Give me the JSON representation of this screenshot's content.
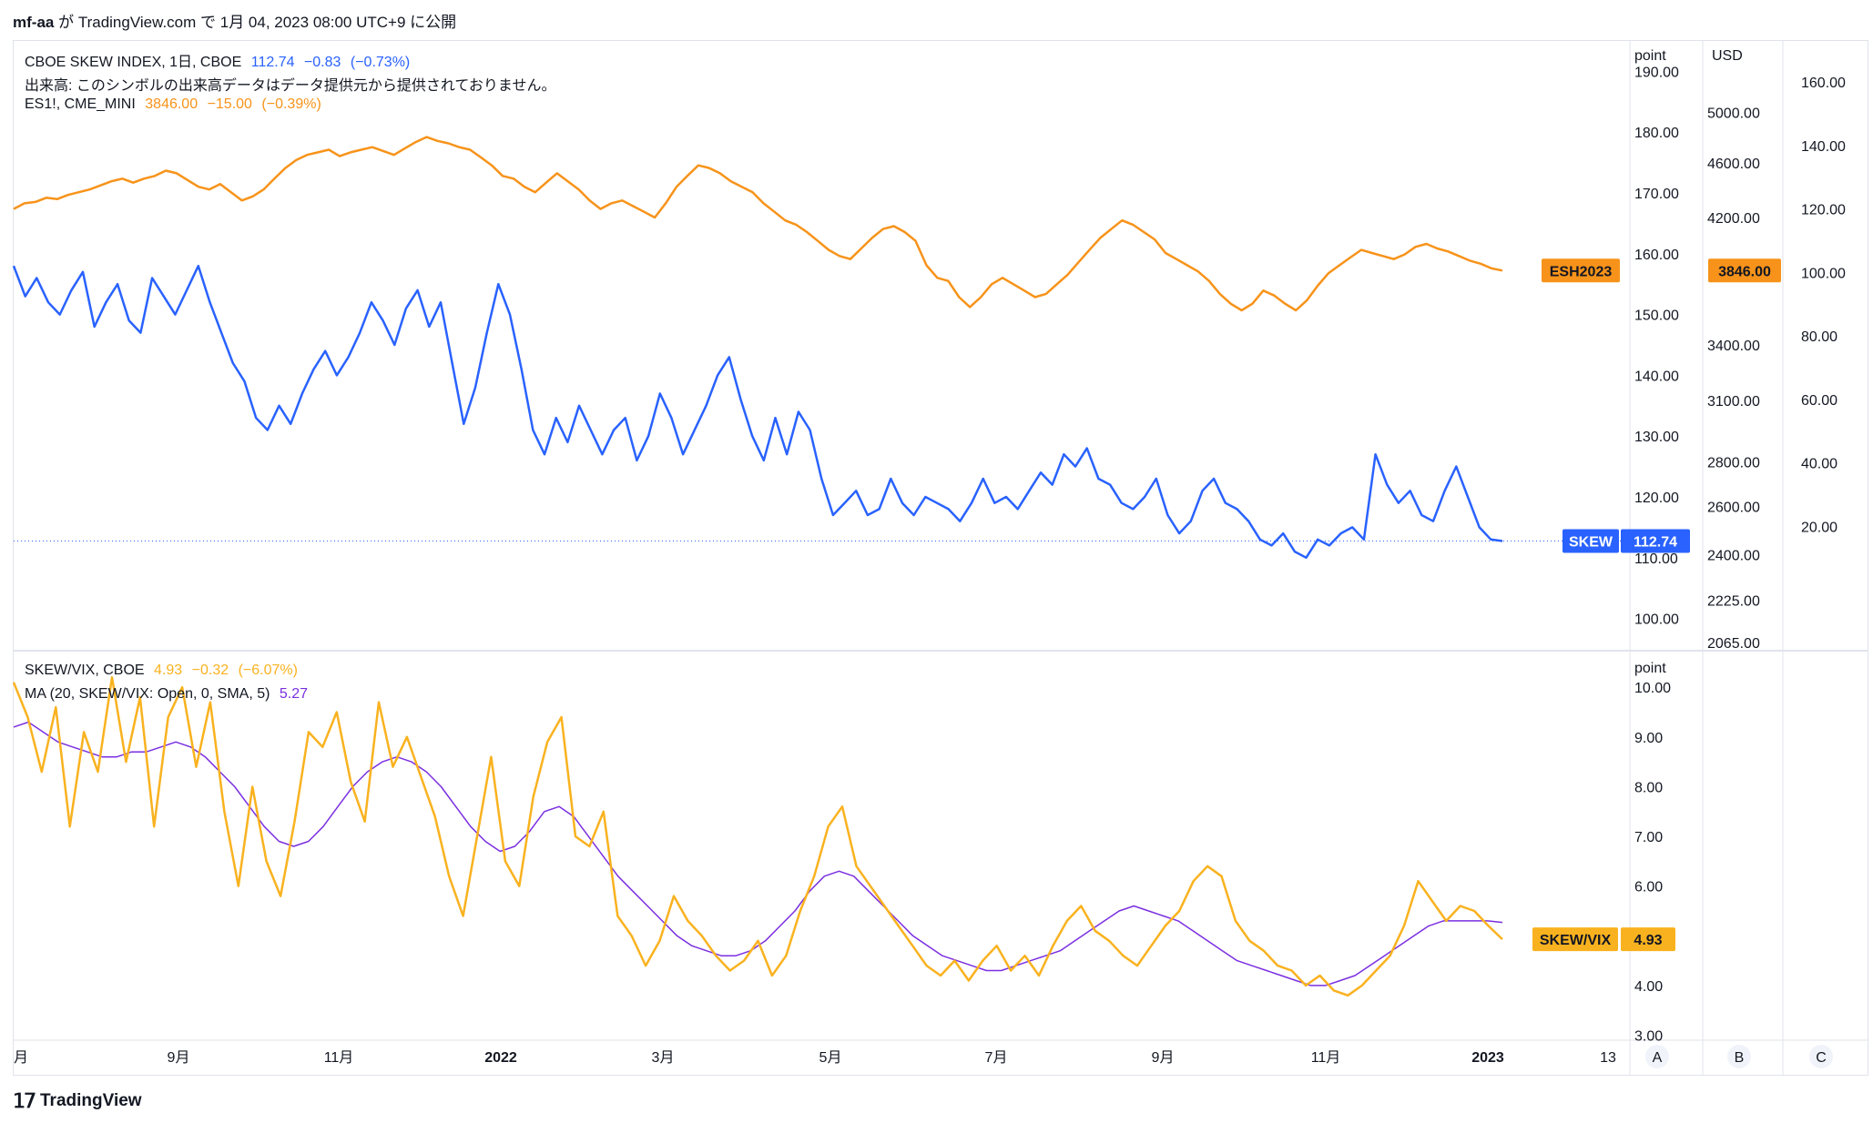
{
  "header": {
    "user": "mf-aa",
    "text1": "が",
    "site": "TradingView.com",
    "text2": "で 1月 04, 2023 08:00 UTC+9 に公開"
  },
  "legend": {
    "skew": {
      "title": "CBOE SKEW INDEX, 1日, CBOE",
      "last": "112.74",
      "change": "−0.83",
      "pct": "(−0.73%)"
    },
    "volume_note": "出来高: このシンボルの出来高データはデータ提供元から提供されておりません。",
    "es": {
      "title": "ES1!, CME_MINI",
      "last": "3846.00",
      "change": "−15.00",
      "pct": "(−0.39%)"
    },
    "ratio": {
      "title": "SKEW/VIX, CBOE",
      "last": "4.93",
      "change": "−0.32",
      "pct": "(−6.07%)"
    },
    "ma": {
      "title": "MA (20, SKEW/VIX: Open, 0, SMA, 5)",
      "value": "5.27"
    }
  },
  "axes": {
    "upper_point_unit": "point",
    "usd_unit": "USD",
    "lower_point_unit": "point",
    "upper_point_ticks": [
      "190.00",
      "180.00",
      "170.00",
      "160.00",
      "150.00",
      "140.00",
      "130.00",
      "120.00",
      "110.00",
      "100.00"
    ],
    "usd_ticks": [
      "5000.00",
      "4600.00",
      "4200.00",
      "3400.00",
      "3100.00",
      "2800.00",
      "2600.00",
      "2400.00",
      "2225.00",
      "2065.00"
    ],
    "c_ticks": [
      "160.00",
      "140.00",
      "120.00",
      "100.00",
      "80.00",
      "60.00",
      "40.00",
      "20.00"
    ],
    "lower_ticks": [
      "10.00",
      "9.00",
      "8.00",
      "7.00",
      "6.00",
      "4.00",
      "3.00"
    ],
    "x_ticks": [
      "月",
      "9月",
      "11月",
      "2022",
      "3月",
      "5月",
      "7月",
      "9月",
      "11月",
      "2023",
      "13"
    ],
    "scale_buttons": [
      "A",
      "B",
      "C"
    ]
  },
  "tags": {
    "esh": "ESH2023",
    "es_value": "3846.00",
    "skew": "SKEW",
    "skew_value": "112.74",
    "ratio": "SKEW/VIX",
    "ratio_value": "4.93"
  },
  "colors": {
    "skew": "#2962ff",
    "es": "#f7931a",
    "ratio": "#f9b21f",
    "ma": "#7b2fe0",
    "red": "#f23645"
  },
  "footer": {
    "brand": "TradingView"
  },
  "chart_data": [
    {
      "type": "line",
      "x_range": [
        "2021-07",
        "2023-01"
      ],
      "series": [
        {
          "name": "ES1!",
          "axis": "USD",
          "values": [
            4260,
            4300,
            4310,
            4340,
            4330,
            4360,
            4380,
            4400,
            4430,
            4460,
            4480,
            4450,
            4480,
            4500,
            4540,
            4520,
            4470,
            4420,
            4400,
            4440,
            4380,
            4320,
            4350,
            4400,
            4480,
            4560,
            4620,
            4660,
            4680,
            4700,
            4650,
            4680,
            4700,
            4720,
            4690,
            4660,
            4710,
            4760,
            4800,
            4770,
            4750,
            4720,
            4700,
            4640,
            4580,
            4500,
            4480,
            4420,
            4380,
            4450,
            4520,
            4460,
            4400,
            4320,
            4260,
            4300,
            4320,
            4280,
            4240,
            4200,
            4300,
            4420,
            4500,
            4580,
            4560,
            4520,
            4460,
            4420,
            4380,
            4300,
            4240,
            4180,
            4150,
            4100,
            4040,
            3980,
            3940,
            3920,
            3990,
            4060,
            4120,
            4140,
            4100,
            4040,
            3880,
            3800,
            3780,
            3680,
            3620,
            3680,
            3760,
            3800,
            3760,
            3720,
            3680,
            3700,
            3760,
            3820,
            3900,
            3980,
            4060,
            4120,
            4180,
            4150,
            4100,
            4050,
            3960,
            3920,
            3880,
            3840,
            3780,
            3700,
            3640,
            3600,
            3640,
            3720,
            3690,
            3640,
            3600,
            3660,
            3750,
            3830,
            3880,
            3930,
            3980,
            3960,
            3940,
            3920,
            3950,
            4000,
            4020,
            3990,
            3970,
            3940,
            3910,
            3890,
            3860,
            3846
          ]
        },
        {
          "name": "SKEW",
          "axis": "point",
          "values": [
            158,
            153,
            156,
            152,
            150,
            154,
            157,
            148,
            152,
            155,
            149,
            147,
            156,
            153,
            150,
            154,
            158,
            152,
            147,
            142,
            139,
            133,
            131,
            135,
            132,
            137,
            141,
            144,
            140,
            143,
            147,
            152,
            149,
            145,
            151,
            154,
            148,
            152,
            142,
            132,
            138,
            147,
            155,
            150,
            141,
            131,
            127,
            133,
            129,
            135,
            131,
            127,
            131,
            133,
            126,
            130,
            137,
            133,
            127,
            131,
            135,
            140,
            143,
            136,
            130,
            126,
            133,
            127,
            134,
            131,
            123,
            117,
            119,
            121,
            117,
            118,
            123,
            119,
            117,
            120,
            119,
            118,
            116,
            119,
            123,
            119,
            120,
            118,
            121,
            124,
            122,
            127,
            125,
            128,
            123,
            122,
            119,
            118,
            120,
            123,
            117,
            114,
            116,
            121,
            123,
            119,
            118,
            116,
            113,
            112,
            114,
            111,
            110,
            113,
            112,
            114,
            115,
            113,
            127,
            122,
            119,
            121,
            117,
            116,
            121,
            125,
            120,
            115,
            113,
            112.74
          ]
        },
        {
          "name": "SKEW/VIX",
          "axis": "point",
          "values": [
            10.1,
            9.4,
            8.3,
            9.6,
            7.2,
            9.1,
            8.3,
            10.2,
            8.5,
            9.8,
            7.2,
            9.4,
            10.0,
            8.4,
            9.7,
            7.5,
            6.0,
            8.0,
            6.5,
            5.8,
            7.3,
            9.1,
            8.8,
            9.5,
            8.1,
            7.3,
            9.7,
            8.4,
            9.0,
            8.2,
            7.4,
            6.2,
            5.4,
            7.0,
            8.6,
            6.5,
            6.0,
            7.8,
            8.9,
            9.4,
            7.0,
            6.8,
            7.5,
            5.4,
            5.0,
            4.4,
            4.9,
            5.8,
            5.3,
            5.0,
            4.6,
            4.3,
            4.5,
            4.9,
            4.2,
            4.6,
            5.5,
            6.2,
            7.2,
            7.6,
            6.4,
            6.0,
            5.6,
            5.2,
            4.8,
            4.4,
            4.2,
            4.5,
            4.1,
            4.5,
            4.8,
            4.3,
            4.6,
            4.2,
            4.8,
            5.3,
            5.6,
            5.1,
            4.9,
            4.6,
            4.4,
            4.8,
            5.2,
            5.5,
            6.1,
            6.4,
            6.2,
            5.3,
            4.9,
            4.7,
            4.4,
            4.3,
            4.0,
            4.2,
            3.9,
            3.8,
            4.0,
            4.3,
            4.6,
            5.2,
            6.1,
            5.7,
            5.3,
            5.6,
            5.5,
            5.2,
            4.93
          ]
        },
        {
          "name": "MA (20, SKEW/VIX: Open, 0, SMA, 5)",
          "axis": "point",
          "values": [
            9.2,
            9.3,
            9.1,
            8.9,
            8.8,
            8.7,
            8.6,
            8.6,
            8.7,
            8.7,
            8.8,
            8.9,
            8.8,
            8.6,
            8.3,
            8.0,
            7.6,
            7.2,
            6.9,
            6.8,
            6.9,
            7.2,
            7.6,
            8.0,
            8.3,
            8.5,
            8.6,
            8.5,
            8.3,
            8.0,
            7.6,
            7.2,
            6.9,
            6.7,
            6.8,
            7.1,
            7.5,
            7.6,
            7.4,
            7.0,
            6.6,
            6.2,
            5.9,
            5.6,
            5.3,
            5.0,
            4.8,
            4.7,
            4.6,
            4.6,
            4.7,
            4.9,
            5.2,
            5.5,
            5.9,
            6.2,
            6.3,
            6.2,
            5.9,
            5.6,
            5.3,
            5.0,
            4.8,
            4.6,
            4.5,
            4.4,
            4.3,
            4.3,
            4.4,
            4.5,
            4.6,
            4.7,
            4.9,
            5.1,
            5.3,
            5.5,
            5.6,
            5.5,
            5.4,
            5.3,
            5.1,
            4.9,
            4.7,
            4.5,
            4.4,
            4.3,
            4.2,
            4.1,
            4.0,
            4.0,
            4.1,
            4.2,
            4.4,
            4.6,
            4.8,
            5.0,
            5.2,
            5.3,
            5.3,
            5.3,
            5.3,
            5.27
          ]
        }
      ],
      "ylim_upper_point": [
        95,
        195
      ],
      "ylim_lower_point": [
        2.9,
        10.7
      ]
    }
  ]
}
